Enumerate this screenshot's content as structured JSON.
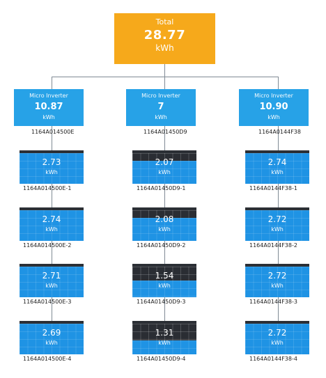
{
  "total": {
    "label": "Total",
    "value": "28.77",
    "unit": "kWh"
  },
  "inverters": [
    {
      "label": "Micro Inverter",
      "value": "10.87",
      "unit": "kWh",
      "id": "1164A014500E",
      "panels": [
        {
          "value": "2.73",
          "unit": "kWh",
          "id": "1164A014500E-1",
          "fill": 1.0
        },
        {
          "value": "2.74",
          "unit": "kWh",
          "id": "1164A014500E-2",
          "fill": 1.0
        },
        {
          "value": "2.71",
          "unit": "kWh",
          "id": "1164A014500E-3",
          "fill": 1.0
        },
        {
          "value": "2.69",
          "unit": "kWh",
          "id": "1164A014500E-4",
          "fill": 1.0
        }
      ]
    },
    {
      "label": "Micro Inverter",
      "value": "7",
      "unit": "kWh",
      "id": "1164A01450D9",
      "panels": [
        {
          "value": "2.07",
          "unit": "kWh",
          "id": "1164A01450D9-1",
          "fill": 0.75
        },
        {
          "value": "2.08",
          "unit": "kWh",
          "id": "1164A01450D9-2",
          "fill": 0.75
        },
        {
          "value": "1.54",
          "unit": "kWh",
          "id": "1164A01450D9-3",
          "fill": 0.55
        },
        {
          "value": "1.31",
          "unit": "kWh",
          "id": "1164A01450D9-4",
          "fill": 0.45
        }
      ]
    },
    {
      "label": "Micro Inverter",
      "value": "10.90",
      "unit": "kWh",
      "id": "1164A0144F38",
      "panels": [
        {
          "value": "2.74",
          "unit": "kWh",
          "id": "1164A0144F38-1",
          "fill": 1.0
        },
        {
          "value": "2.72",
          "unit": "kWh",
          "id": "1164A0144F38-2",
          "fill": 1.0
        },
        {
          "value": "2.72",
          "unit": "kWh",
          "id": "1164A0144F38-3",
          "fill": 1.0
        },
        {
          "value": "2.72",
          "unit": "kWh",
          "id": "1164A0144F38-4",
          "fill": 1.0
        }
      ]
    }
  ],
  "colors": {
    "total": "#f6a91b",
    "inverter": "#27a2e7",
    "panel_fill": "#1f93e4",
    "panel_empty": "#2a2d33"
  }
}
